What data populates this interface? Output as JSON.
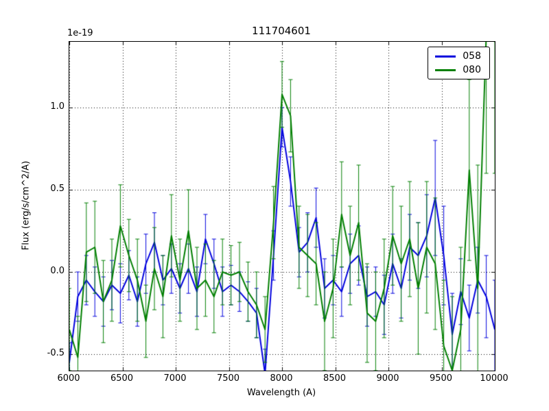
{
  "chart_data": {
    "type": "line",
    "title": "111704601",
    "xlabel": "Wavelength (A)",
    "ylabel": "Flux (erg/s/cm^2/A)",
    "y_offset_text": "1e-19",
    "xlim": [
      6000,
      10000
    ],
    "ylim": [
      -0.6,
      1.4
    ],
    "x_ticks": [
      6000,
      6500,
      7000,
      7500,
      8000,
      8500,
      9000,
      9500,
      10000
    ],
    "y_ticks": [
      -0.5,
      0.0,
      0.5,
      1.0
    ],
    "grid": true,
    "grid_style": "dotted",
    "legend_position": "upper right",
    "x": [
      6000,
      6080,
      6160,
      6240,
      6320,
      6400,
      6480,
      6560,
      6640,
      6720,
      6800,
      6880,
      6960,
      7040,
      7120,
      7200,
      7280,
      7360,
      7440,
      7520,
      7600,
      7680,
      7760,
      7840,
      7920,
      8000,
      8080,
      8160,
      8240,
      8320,
      8400,
      8480,
      8560,
      8640,
      8720,
      8800,
      8880,
      8960,
      9040,
      9120,
      9200,
      9280,
      9360,
      9440,
      9520,
      9600,
      9680,
      9760,
      9840,
      9920,
      10000
    ],
    "series": [
      {
        "name": "058",
        "color": "#0000dd",
        "values": [
          -0.55,
          -0.15,
          -0.05,
          -0.12,
          -0.18,
          -0.08,
          -0.13,
          -0.02,
          -0.18,
          0.05,
          0.18,
          -0.05,
          0.02,
          -0.1,
          0.02,
          -0.12,
          0.2,
          0.05,
          -0.12,
          -0.08,
          -0.12,
          -0.18,
          -0.25,
          -0.62,
          0.1,
          0.88,
          0.55,
          0.12,
          0.18,
          0.33,
          -0.1,
          -0.05,
          -0.12,
          0.05,
          0.1,
          -0.15,
          -0.12,
          -0.2,
          0.05,
          -0.1,
          0.15,
          0.1,
          0.22,
          0.45,
          0.1,
          -0.38,
          -0.12,
          -0.28,
          -0.05,
          -0.15,
          -0.35
        ],
        "errors": [
          0.12,
          0.15,
          0.15,
          0.15,
          0.15,
          0.15,
          0.18,
          0.15,
          0.15,
          0.18,
          0.18,
          0.15,
          0.15,
          0.15,
          0.15,
          0.15,
          0.15,
          0.15,
          0.15,
          0.12,
          0.12,
          0.12,
          0.15,
          0.15,
          0.15,
          0.12,
          0.15,
          0.15,
          0.18,
          0.18,
          0.18,
          0.15,
          0.15,
          0.18,
          0.18,
          0.18,
          0.15,
          0.18,
          0.18,
          0.18,
          0.2,
          0.2,
          0.25,
          0.35,
          0.3,
          0.25,
          0.2,
          0.2,
          0.2,
          0.25,
          0.3
        ]
      },
      {
        "name": "080",
        "color": "#007f00",
        "values": [
          -0.35,
          -0.52,
          0.12,
          0.15,
          -0.18,
          -0.05,
          0.28,
          0.1,
          -0.05,
          -0.3,
          0.02,
          -0.15,
          0.22,
          -0.05,
          0.25,
          -0.1,
          -0.05,
          -0.15,
          0.0,
          -0.02,
          0.0,
          -0.12,
          -0.2,
          -0.35,
          0.3,
          1.08,
          0.95,
          0.15,
          0.1,
          0.05,
          -0.3,
          -0.1,
          0.35,
          0.1,
          0.3,
          -0.25,
          -0.3,
          -0.1,
          0.22,
          0.05,
          0.2,
          -0.1,
          0.15,
          0.05,
          -0.45,
          -0.6,
          -0.35,
          0.62,
          -0.1,
          1.45,
          1.4
        ],
        "errors": [
          0.25,
          0.25,
          0.3,
          0.28,
          0.25,
          0.25,
          0.25,
          0.22,
          0.25,
          0.22,
          0.25,
          0.25,
          0.25,
          0.25,
          0.25,
          0.25,
          0.22,
          0.22,
          0.2,
          0.18,
          0.18,
          0.18,
          0.2,
          0.2,
          0.22,
          0.2,
          0.22,
          0.25,
          0.25,
          0.25,
          0.3,
          0.3,
          0.32,
          0.3,
          0.35,
          0.3,
          0.3,
          0.3,
          0.3,
          0.35,
          0.35,
          0.4,
          0.4,
          0.4,
          0.4,
          0.45,
          0.5,
          0.55,
          0.75,
          0.85,
          0.8
        ]
      }
    ]
  }
}
